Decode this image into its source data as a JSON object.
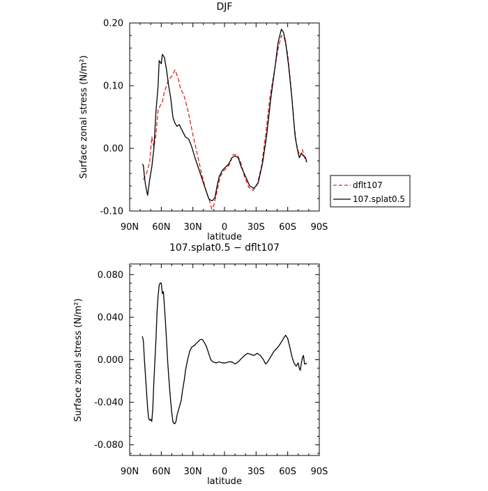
{
  "chart_data": [
    {
      "type": "line",
      "title": "DJF",
      "xlabel": "latitude",
      "ylabel": "Surface zonal stress (N/m²)",
      "xlim": [
        90,
        -90
      ],
      "ylim": [
        -0.1,
        0.2
      ],
      "x_ticks": [
        90,
        60,
        30,
        0,
        -30,
        -60,
        -90
      ],
      "x_tick_labels": [
        "90N",
        "60N",
        "30N",
        "0",
        "30S",
        "60S",
        "90S"
      ],
      "y_ticks": [
        -0.1,
        0.0,
        0.1,
        0.2
      ],
      "y_tick_labels": [
        "-0.10",
        "0.00",
        "0.10",
        "0.20"
      ],
      "legend_position": "right",
      "series": [
        {
          "name": "dflt107",
          "color": "#dd2222",
          "dash": "dashed",
          "points": [
            [
              77,
              -0.05
            ],
            [
              74,
              -0.04
            ],
            [
              71,
              -0.022
            ],
            [
              69,
              0.018
            ],
            [
              67,
              0.002
            ],
            [
              65,
              0.022
            ],
            [
              63,
              0.062
            ],
            [
              61,
              0.068
            ],
            [
              59,
              0.074
            ],
            [
              57,
              0.09
            ],
            [
              55,
              0.1
            ],
            [
              53,
              0.11
            ],
            [
              50,
              0.115
            ],
            [
              47,
              0.125
            ],
            [
              44,
              0.112
            ],
            [
              42,
              0.097
            ],
            [
              38,
              0.082
            ],
            [
              34,
              0.055
            ],
            [
              30,
              0.022
            ],
            [
              26,
              -0.008
            ],
            [
              22,
              -0.038
            ],
            [
              18,
              -0.065
            ],
            [
              14,
              -0.085
            ],
            [
              12,
              -0.097
            ],
            [
              10,
              -0.09
            ],
            [
              7,
              -0.068
            ],
            [
              4,
              -0.045
            ],
            [
              1,
              -0.036
            ],
            [
              -2,
              -0.032
            ],
            [
              -5,
              -0.025
            ],
            [
              -8,
              -0.01
            ],
            [
              -12,
              -0.01
            ],
            [
              -15,
              -0.02
            ],
            [
              -19,
              -0.045
            ],
            [
              -23,
              -0.062
            ],
            [
              -27,
              -0.067
            ],
            [
              -31,
              -0.058
            ],
            [
              -35,
              -0.03
            ],
            [
              -39,
              0.02
            ],
            [
              -43,
              0.08
            ],
            [
              -47,
              0.12
            ],
            [
              -51,
              0.16
            ],
            [
              -54,
              0.18
            ],
            [
              -57,
              0.175
            ],
            [
              -60,
              0.15
            ],
            [
              -63,
              0.1
            ],
            [
              -66,
              0.04
            ],
            [
              -68,
              0.01
            ],
            [
              -70,
              -0.005
            ],
            [
              -72,
              -0.012
            ],
            [
              -74,
              -0.002
            ],
            [
              -76,
              -0.015
            ],
            [
              -78,
              -0.022
            ]
          ]
        },
        {
          "name": "107.splat0.5",
          "color": "#000000",
          "dash": "solid",
          "points": [
            [
              78,
              -0.025
            ],
            [
              77,
              -0.027
            ],
            [
              76,
              -0.045
            ],
            [
              75,
              -0.058
            ],
            [
              73,
              -0.075
            ],
            [
              71,
              -0.05
            ],
            [
              69,
              -0.03
            ],
            [
              67,
              0.0
            ],
            [
              65,
              0.06
            ],
            [
              63,
              0.1
            ],
            [
              62,
              0.14
            ],
            [
              60,
              0.135
            ],
            [
              59,
              0.15
            ],
            [
              57,
              0.145
            ],
            [
              55,
              0.125
            ],
            [
              53,
              0.1
            ],
            [
              51,
              0.08
            ],
            [
              49,
              0.05
            ],
            [
              47,
              0.04
            ],
            [
              45,
              0.035
            ],
            [
              43,
              0.038
            ],
            [
              40,
              0.028
            ],
            [
              37,
              0.018
            ],
            [
              34,
              0.015
            ],
            [
              31,
              0.002
            ],
            [
              28,
              -0.015
            ],
            [
              25,
              -0.03
            ],
            [
              22,
              -0.045
            ],
            [
              19,
              -0.06
            ],
            [
              17,
              -0.07
            ],
            [
              15,
              -0.08
            ],
            [
              13,
              -0.083
            ],
            [
              11,
              -0.083
            ],
            [
              9,
              -0.078
            ],
            [
              7,
              -0.06
            ],
            [
              5,
              -0.045
            ],
            [
              2,
              -0.035
            ],
            [
              -1,
              -0.03
            ],
            [
              -4,
              -0.025
            ],
            [
              -7,
              -0.015
            ],
            [
              -10,
              -0.012
            ],
            [
              -13,
              -0.015
            ],
            [
              -16,
              -0.03
            ],
            [
              -20,
              -0.045
            ],
            [
              -24,
              -0.06
            ],
            [
              -28,
              -0.064
            ],
            [
              -32,
              -0.055
            ],
            [
              -36,
              -0.025
            ],
            [
              -40,
              0.02
            ],
            [
              -44,
              0.08
            ],
            [
              -48,
              0.13
            ],
            [
              -51,
              0.17
            ],
            [
              -54,
              0.19
            ],
            [
              -56,
              0.185
            ],
            [
              -58,
              0.17
            ],
            [
              -61,
              0.13
            ],
            [
              -64,
              0.08
            ],
            [
              -67,
              0.02
            ],
            [
              -69,
              0.0
            ],
            [
              -71,
              -0.015
            ],
            [
              -73,
              -0.008
            ],
            [
              -75,
              -0.012
            ],
            [
              -77,
              -0.015
            ],
            [
              -78,
              -0.022
            ]
          ]
        }
      ]
    },
    {
      "type": "line",
      "title": "107.splat0.5 − dflt107",
      "xlabel": "latitude",
      "ylabel": "Surface zonal stress (N/m²)",
      "xlim": [
        90,
        -90
      ],
      "ylim": [
        -0.09,
        0.09
      ],
      "x_ticks": [
        90,
        60,
        30,
        0,
        -30,
        -60,
        -90
      ],
      "x_tick_labels": [
        "90N",
        "60N",
        "30N",
        "0",
        "30S",
        "60S",
        "90S"
      ],
      "y_ticks": [
        -0.08,
        -0.04,
        0.0,
        0.04,
        0.08
      ],
      "y_tick_labels": [
        "-0.080",
        "-0.040",
        "0.000",
        "0.040",
        "0.080"
      ],
      "series": [
        {
          "name": "",
          "color": "#000000",
          "dash": "solid",
          "points": [
            [
              78,
              0.022
            ],
            [
              77,
              0.018
            ],
            [
              76,
              0.0
            ],
            [
              75,
              -0.015
            ],
            [
              74,
              -0.03
            ],
            [
              73,
              -0.045
            ],
            [
              72,
              -0.055
            ],
            [
              71,
              -0.057
            ],
            [
              70,
              -0.056
            ],
            [
              69,
              -0.058
            ],
            [
              68,
              -0.045
            ],
            [
              67,
              -0.02
            ],
            [
              66,
              0.0
            ],
            [
              65,
              0.02
            ],
            [
              64,
              0.045
            ],
            [
              63,
              0.06
            ],
            [
              62,
              0.07
            ],
            [
              61,
              0.072
            ],
            [
              60,
              0.072
            ],
            [
              59,
              0.062
            ],
            [
              58,
              0.064
            ],
            [
              57,
              0.05
            ],
            [
              56,
              0.035
            ],
            [
              55,
              0.018
            ],
            [
              54,
              0.0
            ],
            [
              53,
              -0.015
            ],
            [
              52,
              -0.028
            ],
            [
              51,
              -0.04
            ],
            [
              50,
              -0.05
            ],
            [
              49,
              -0.058
            ],
            [
              48,
              -0.06
            ],
            [
              47,
              -0.06
            ],
            [
              46,
              -0.058
            ],
            [
              45,
              -0.052
            ],
            [
              43,
              -0.045
            ],
            [
              41,
              -0.038
            ],
            [
              40,
              -0.03
            ],
            [
              38,
              -0.018
            ],
            [
              37,
              -0.01
            ],
            [
              35,
              0.0
            ],
            [
              33,
              0.008
            ],
            [
              31,
              0.012
            ],
            [
              29,
              0.013
            ],
            [
              27,
              0.015
            ],
            [
              25,
              0.017
            ],
            [
              23,
              0.019
            ],
            [
              21,
              0.019
            ],
            [
              19,
              0.016
            ],
            [
              17,
              0.012
            ],
            [
              15,
              0.006
            ],
            [
              13,
              0.0
            ],
            [
              11,
              -0.002
            ],
            [
              8,
              -0.003
            ],
            [
              5,
              -0.002
            ],
            [
              2,
              -0.003
            ],
            [
              -1,
              -0.003
            ],
            [
              -4,
              -0.002
            ],
            [
              -7,
              -0.002
            ],
            [
              -10,
              -0.004
            ],
            [
              -13,
              -0.002
            ],
            [
              -16,
              0.001
            ],
            [
              -19,
              0.004
            ],
            [
              -22,
              0.006
            ],
            [
              -25,
              0.005
            ],
            [
              -28,
              0.004
            ],
            [
              -31,
              0.006
            ],
            [
              -34,
              0.004
            ],
            [
              -37,
              0.0
            ],
            [
              -39,
              -0.004
            ],
            [
              -41,
              -0.002
            ],
            [
              -44,
              0.003
            ],
            [
              -47,
              0.008
            ],
            [
              -50,
              0.011
            ],
            [
              -53,
              0.015
            ],
            [
              -56,
              0.02
            ],
            [
              -58,
              0.023
            ],
            [
              -60,
              0.02
            ],
            [
              -62,
              0.012
            ],
            [
              -64,
              0.003
            ],
            [
              -66,
              -0.003
            ],
            [
              -68,
              -0.006
            ],
            [
              -70,
              -0.003
            ],
            [
              -71,
              -0.008
            ],
            [
              -72,
              -0.01
            ],
            [
              -73,
              -0.003
            ],
            [
              -74,
              0.002
            ],
            [
              -75,
              0.004
            ],
            [
              -76,
              -0.004
            ],
            [
              -77,
              -0.004
            ],
            [
              -78,
              -0.003
            ]
          ]
        }
      ]
    }
  ]
}
